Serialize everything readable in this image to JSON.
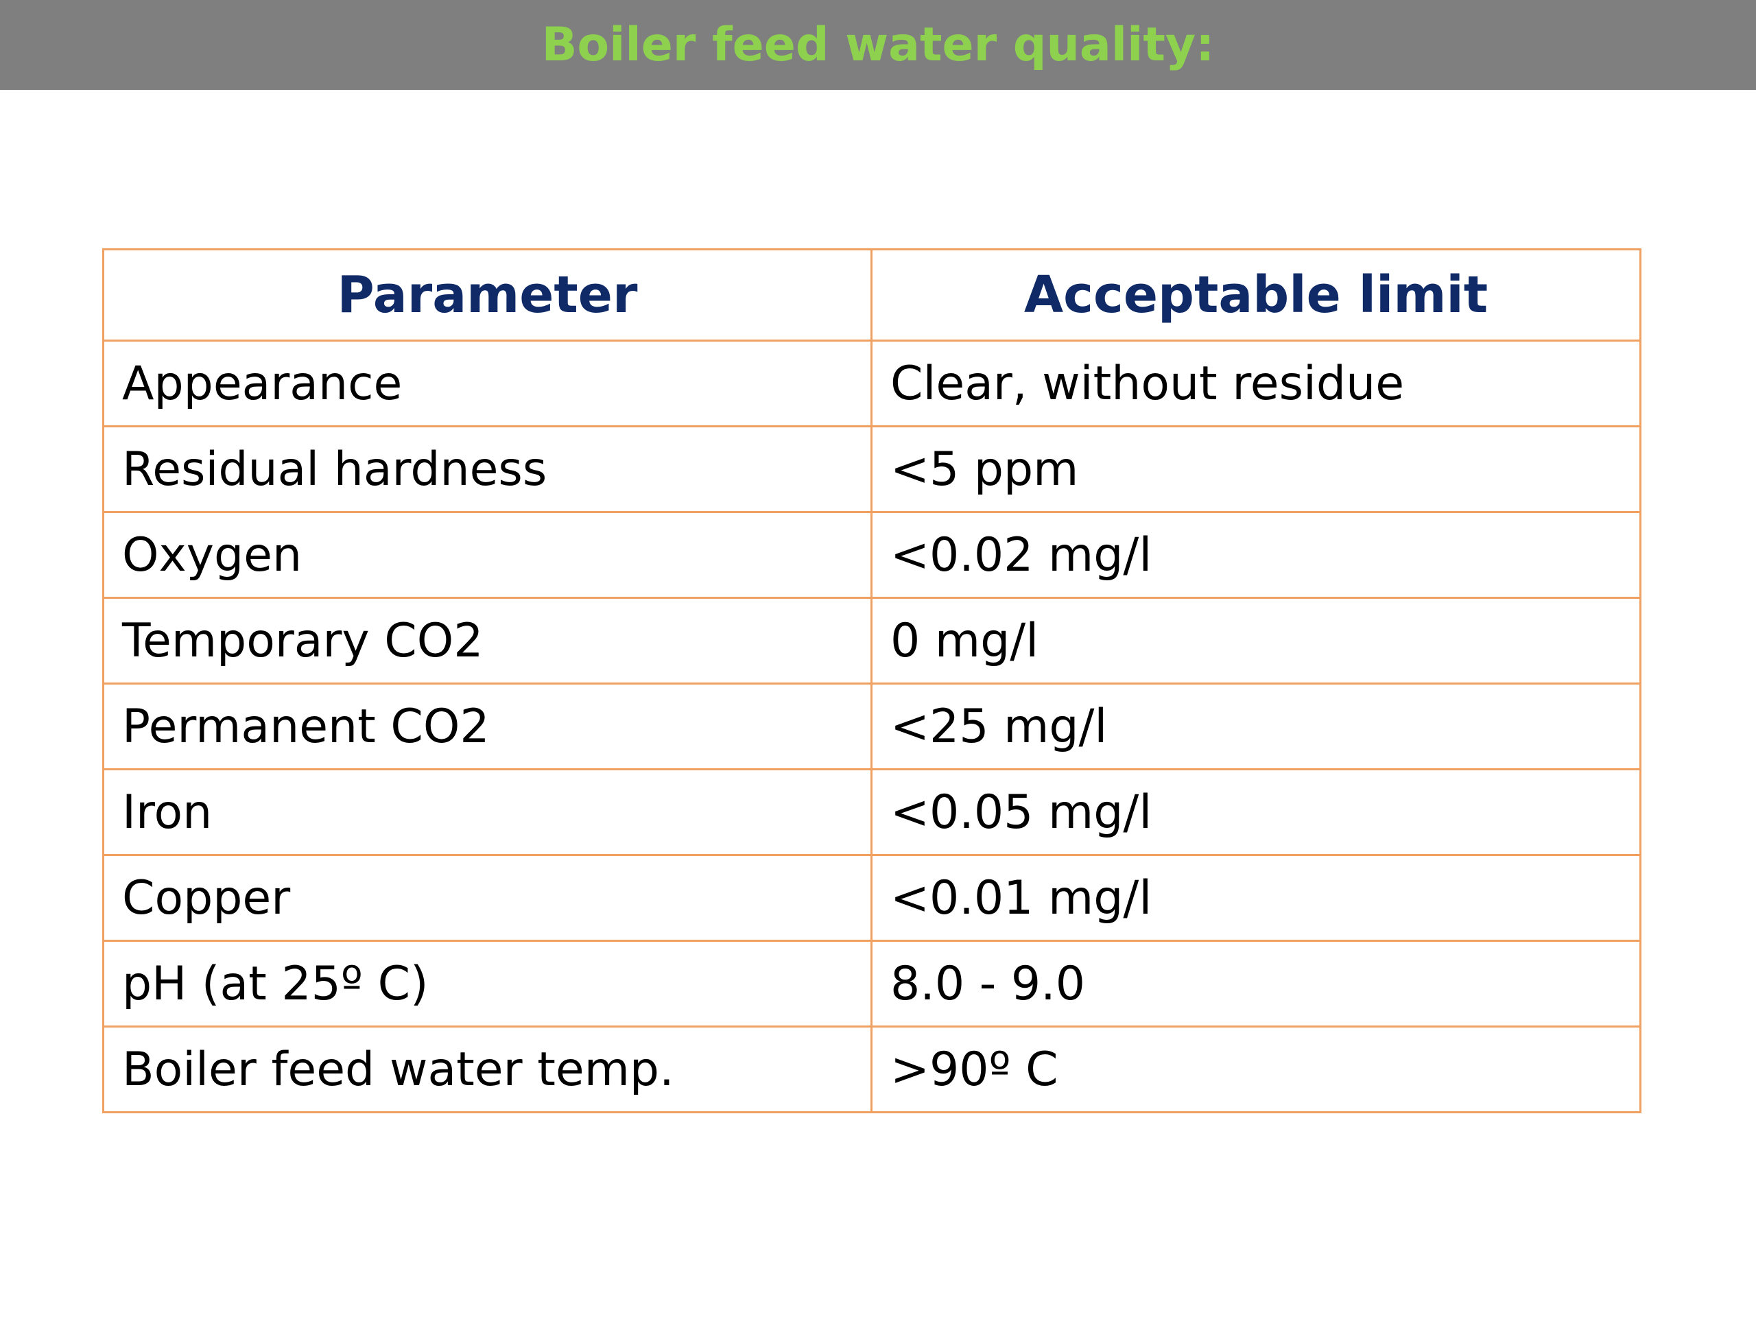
{
  "header": {
    "title": "Boiler feed water quality:"
  },
  "table": {
    "columns": [
      "Parameter",
      "Acceptable limit"
    ],
    "rows": [
      [
        "Appearance",
        "Clear, without residue"
      ],
      [
        "Residual hardness",
        "<5 ppm"
      ],
      [
        "Oxygen",
        "<0.02 mg/l"
      ],
      [
        "Temporary CO2",
        "0 mg/l"
      ],
      [
        "Permanent CO2",
        "<25 mg/l"
      ],
      [
        "Iron",
        "<0.05 mg/l"
      ],
      [
        "Copper",
        "<0.01 mg/l"
      ],
      [
        "pH (at 25º C)",
        "8.0 - 9.0"
      ],
      [
        "Boiler feed water temp.",
        ">90º C"
      ]
    ]
  }
}
